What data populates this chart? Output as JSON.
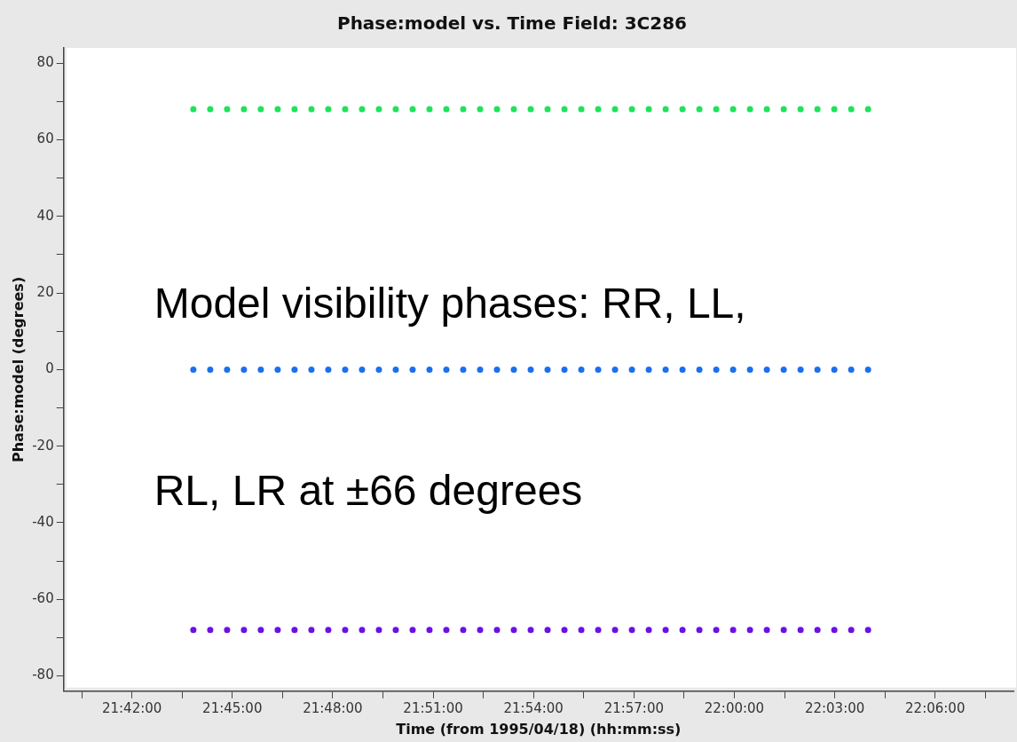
{
  "chart_data": {
    "type": "scatter",
    "title": "Phase:model vs. Time Field: 3C286",
    "xlabel": "Time (from 1995/04/18) (hh:mm:ss)",
    "ylabel": "Phase:model (degrees)",
    "annotations": [
      "Model visibility phases: RR, LL,",
      "RL, LR at ±66 degrees"
    ],
    "x": [
      21.7306,
      21.739,
      21.7474,
      21.7558,
      21.7642,
      21.7726,
      21.781,
      21.7894,
      21.7978,
      21.8062,
      21.8146,
      21.823,
      21.8314,
      21.8398,
      21.8482,
      21.8566,
      21.865,
      21.8734,
      21.8818,
      21.8902,
      21.8986,
      21.907,
      21.9154,
      21.9238,
      21.9322,
      21.9406,
      21.949,
      21.9574,
      21.9658,
      21.9742,
      21.9826,
      21.991,
      21.9994,
      22.0078,
      22.0162,
      22.0246,
      22.033,
      22.0414,
      22.0498,
      22.0582,
      22.0666
    ],
    "series": [
      {
        "color": "#1ee35a",
        "values": [
          68,
          68,
          68,
          68,
          68,
          68,
          68,
          68,
          68,
          68,
          68,
          68,
          68,
          68,
          68,
          68,
          68,
          68,
          68,
          68,
          68,
          68,
          68,
          68,
          68,
          68,
          68,
          68,
          68,
          68,
          68,
          68,
          68,
          68,
          68,
          68,
          68,
          68,
          68,
          68,
          68
        ]
      },
      {
        "color": "#1a6ff0",
        "values": [
          0,
          0,
          0,
          0,
          0,
          0,
          0,
          0,
          0,
          0,
          0,
          0,
          0,
          0,
          0,
          0,
          0,
          0,
          0,
          0,
          0,
          0,
          0,
          0,
          0,
          0,
          0,
          0,
          0,
          0,
          0,
          0,
          0,
          0,
          0,
          0,
          0,
          0,
          0,
          0,
          0
        ]
      },
      {
        "color": "#6a10e8",
        "values": [
          -68,
          -68,
          -68,
          -68,
          -68,
          -68,
          -68,
          -68,
          -68,
          -68,
          -68,
          -68,
          -68,
          -68,
          -68,
          -68,
          -68,
          -68,
          -68,
          -68,
          -68,
          -68,
          -68,
          -68,
          -68,
          -68,
          -68,
          -68,
          -68,
          -68,
          -68,
          -68,
          -68,
          -68,
          -68,
          -68,
          -68,
          -68,
          -68,
          -68,
          -68
        ]
      }
    ],
    "xlim": [
      21.666,
      22.139
    ],
    "xticks": [
      {
        "value": 21.675,
        "label": null
      },
      {
        "value": 21.7,
        "label": "21:42:00"
      },
      {
        "value": 21.725,
        "label": null
      },
      {
        "value": 21.75,
        "label": "21:45:00"
      },
      {
        "value": 21.775,
        "label": null
      },
      {
        "value": 21.8,
        "label": "21:48:00"
      },
      {
        "value": 21.825,
        "label": null
      },
      {
        "value": 21.85,
        "label": "21:51:00"
      },
      {
        "value": 21.875,
        "label": null
      },
      {
        "value": 21.9,
        "label": "21:54:00"
      },
      {
        "value": 21.925,
        "label": null
      },
      {
        "value": 21.95,
        "label": "21:57:00"
      },
      {
        "value": 21.975,
        "label": null
      },
      {
        "value": 22.0,
        "label": "22:00:00"
      },
      {
        "value": 22.025,
        "label": null
      },
      {
        "value": 22.05,
        "label": "22:03:00"
      },
      {
        "value": 22.075,
        "label": null
      },
      {
        "value": 22.1,
        "label": "22:06:00"
      },
      {
        "value": 22.125,
        "label": null
      }
    ],
    "ylim": [
      -84,
      84
    ],
    "yticks": [
      -80,
      {
        "value": -70,
        "label": null
      },
      -60,
      {
        "value": -50,
        "label": null
      },
      -40,
      {
        "value": -30,
        "label": null
      },
      -20,
      {
        "value": -10,
        "label": null
      },
      0,
      {
        "value": 10,
        "label": null
      },
      20,
      {
        "value": 30,
        "label": null
      },
      40,
      {
        "value": 50,
        "label": null
      },
      60,
      {
        "value": 70,
        "label": null
      },
      80
    ],
    "grid": false,
    "legend": false,
    "marker": "circle"
  }
}
